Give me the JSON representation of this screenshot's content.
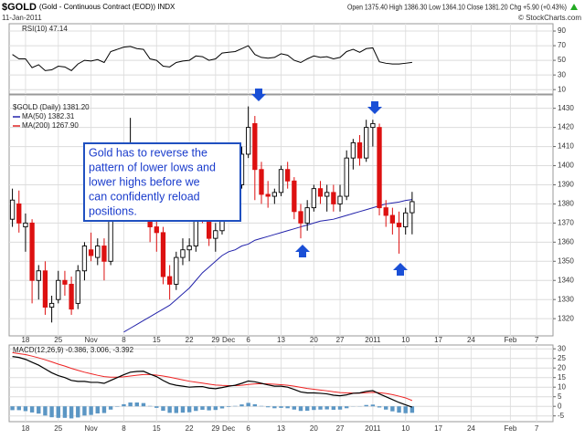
{
  "chart_data": {
    "type": "candlestick",
    "header": {
      "symbol": "$GOLD",
      "name": "(Gold - Continuous Contract (EOD)) INDX",
      "date": "11-Jan-2011",
      "quote": "Open 1375.40 High 1386.30 Low 1364.10 Close 1381.20 Chg +5.90 (+0.43%)",
      "credit": "© StockCharts.com"
    },
    "categories": [
      null,
      null,
      "18",
      null,
      null,
      null,
      null,
      "25",
      null,
      null,
      null,
      null,
      "Nov",
      null,
      null,
      null,
      null,
      "8",
      null,
      null,
      null,
      null,
      "15",
      null,
      null,
      null,
      null,
      "22",
      null,
      null,
      null,
      "29",
      null,
      "Dec",
      null,
      null,
      "6",
      null,
      null,
      null,
      null,
      "13",
      null,
      null,
      null,
      null,
      "20",
      null,
      null,
      null,
      "27",
      null,
      null,
      null,
      null,
      "2011",
      null,
      null,
      null,
      null,
      "10",
      null,
      null,
      null,
      null,
      "17",
      null,
      null,
      null,
      null,
      "24",
      null,
      null,
      null,
      null,
      null,
      "Feb",
      null,
      null,
      null,
      "7",
      null,
      null
    ],
    "grid": true,
    "annotation": [
      "Gold has to reverse the",
      "pattern of lower lows and",
      "lower highs before we",
      "can confidently reload",
      "positions."
    ],
    "rsi": {
      "legend": "RSI(10) 47.14",
      "ylim": [
        4,
        100
      ],
      "yticks": [
        90,
        70,
        50,
        30,
        10
      ],
      "color": "#000000",
      "values": [
        58,
        52,
        52,
        40,
        44,
        36,
        37,
        42,
        41,
        36,
        45,
        50,
        49,
        51,
        47,
        62,
        65,
        68,
        69,
        66,
        65,
        52,
        50,
        42,
        41,
        47,
        49,
        50,
        56,
        55,
        50,
        52,
        60,
        61,
        62,
        66,
        70,
        58,
        54,
        53,
        54,
        59,
        57,
        50,
        47,
        52,
        56,
        54,
        55,
        52,
        54,
        62,
        65,
        61,
        66,
        67,
        48,
        46,
        45,
        45,
        46,
        47.14,
        null,
        null,
        null,
        null,
        null,
        null,
        null,
        null,
        null,
        null,
        null,
        null,
        null,
        null,
        null,
        null,
        null,
        null,
        null,
        null,
        null
      ]
    },
    "price": {
      "legend": [
        "$GOLD (Daily) 1381.20",
        "MA(50) 1382.31",
        "MA(200) 1267.90"
      ],
      "legend_colors": [
        "#000000",
        "#2222aa",
        "#dd2222"
      ],
      "ylim": [
        1311,
        1437
      ],
      "yticks": [
        1430,
        1420,
        1410,
        1400,
        1390,
        1380,
        1370,
        1360,
        1350,
        1340,
        1330,
        1320
      ],
      "up_color": "#000000",
      "down_color": "#dd1111",
      "open": [
        1372,
        1380,
        1368,
        1370,
        1340,
        1345,
        1326,
        1330,
        1340,
        1338,
        1328,
        1345,
        1356,
        1352,
        1358,
        1350,
        1388,
        1395,
        1405,
        1405,
        1402,
        1400,
        1368,
        1365,
        1342,
        1338,
        1352,
        1356,
        1358,
        1375,
        1374,
        1362,
        1366,
        1386,
        1388,
        1390,
        1406,
        1422,
        1398,
        1385,
        1384,
        1386,
        1398,
        1392,
        1376,
        1370,
        1378,
        1388,
        1384,
        1386,
        1380,
        1384,
        1404,
        1412,
        1404,
        1420,
        1420,
        1378,
        1374,
        1370,
        1368,
        1375.4,
        null,
        null,
        null,
        null,
        null,
        null,
        null,
        null,
        null,
        null,
        null,
        null,
        null,
        null,
        null,
        null,
        null,
        null,
        null,
        null,
        null
      ],
      "high": [
        1388,
        1387,
        1375,
        1372,
        1348,
        1350,
        1332,
        1345,
        1345,
        1342,
        1348,
        1360,
        1365,
        1362,
        1362,
        1392,
        1400,
        1412,
        1425,
        1412,
        1410,
        1402,
        1372,
        1368,
        1348,
        1355,
        1362,
        1362,
        1378,
        1380,
        1376,
        1370,
        1388,
        1392,
        1392,
        1410,
        1431,
        1426,
        1402,
        1392,
        1388,
        1400,
        1402,
        1394,
        1380,
        1382,
        1390,
        1392,
        1390,
        1390,
        1390,
        1408,
        1414,
        1416,
        1424,
        1424,
        1422,
        1382,
        1378,
        1376,
        1378,
        1386.3,
        null,
        null,
        null,
        null,
        null,
        null,
        null,
        null,
        null,
        null,
        null,
        null,
        null,
        null,
        null,
        null,
        null,
        null,
        null,
        null,
        null
      ],
      "low": [
        1368,
        1365,
        1355,
        1328,
        1330,
        1322,
        1318,
        1328,
        1332,
        1322,
        1325,
        1340,
        1350,
        1348,
        1340,
        1348,
        1375,
        1390,
        1400,
        1392,
        1395,
        1360,
        1355,
        1338,
        1330,
        1335,
        1348,
        1350,
        1355,
        1370,
        1358,
        1355,
        1364,
        1380,
        1382,
        1388,
        1404,
        1382,
        1380,
        1378,
        1380,
        1384,
        1388,
        1372,
        1362,
        1366,
        1376,
        1380,
        1376,
        1376,
        1376,
        1382,
        1398,
        1400,
        1402,
        1410,
        1374,
        1368,
        1364,
        1354,
        1364,
        1364.1,
        null,
        null,
        null,
        null,
        null,
        null,
        null,
        null,
        null,
        null,
        null,
        null,
        null,
        null,
        null,
        null,
        null,
        null,
        null,
        null,
        null
      ],
      "close": [
        1382,
        1370,
        1370,
        1340,
        1345,
        1326,
        1328,
        1340,
        1338,
        1325,
        1345,
        1358,
        1353,
        1358,
        1350,
        1388,
        1395,
        1405,
        1410,
        1402,
        1400,
        1368,
        1365,
        1342,
        1338,
        1352,
        1356,
        1358,
        1375,
        1374,
        1362,
        1366,
        1386,
        1388,
        1390,
        1406,
        1420,
        1398,
        1385,
        1384,
        1386,
        1398,
        1392,
        1376,
        1370,
        1378,
        1388,
        1384,
        1386,
        1380,
        1384,
        1404,
        1412,
        1404,
        1420,
        1422,
        1378,
        1374,
        1370,
        1368,
        1375.3,
        1381.2,
        null,
        null,
        null,
        null,
        null,
        null,
        null,
        null,
        null,
        null,
        null,
        null,
        null,
        null,
        null,
        null,
        null,
        null,
        null,
        null,
        null
      ],
      "ma50": {
        "color": "#2222aa",
        "values": [
          null,
          null,
          null,
          null,
          null,
          null,
          null,
          null,
          null,
          null,
          null,
          null,
          null,
          null,
          null,
          null,
          null,
          1313,
          1315,
          1317,
          1319,
          1321,
          1323,
          1325,
          1327,
          1330,
          1333,
          1336,
          1340,
          1344,
          1347,
          1350,
          1353,
          1355,
          1356,
          1358,
          1359,
          1361,
          1362,
          1363,
          1364,
          1365,
          1366,
          1367,
          1368,
          1369,
          1370,
          1371,
          1371.5,
          1372,
          1373,
          1374,
          1375,
          1376,
          1377,
          1378,
          1379,
          1380,
          1380.5,
          1381,
          1381.8,
          1382.31,
          null,
          null,
          null,
          null,
          null,
          null,
          null,
          null,
          null,
          null,
          null,
          null,
          null,
          null,
          null,
          null,
          null,
          null,
          null,
          null,
          null
        ]
      }
    },
    "macd": {
      "legend": "MACD(12,26,9) -0.386, 3.006, -3.392",
      "ylim": [
        -8,
        32
      ],
      "yticks": [
        30,
        25,
        20,
        15,
        10,
        5,
        0,
        -5
      ],
      "line": {
        "color": "#000000",
        "values": [
          26,
          25.5,
          24.5,
          23,
          21.5,
          19.5,
          17.5,
          16,
          15,
          13.5,
          13,
          13,
          12.5,
          12.5,
          12,
          13.5,
          15,
          16.5,
          17.8,
          18.2,
          18.3,
          16.8,
          15.5,
          13.5,
          11.8,
          11,
          10.5,
          10,
          10.2,
          10.3,
          9.5,
          9.2,
          9.8,
          10.5,
          11,
          12,
          13.2,
          12.8,
          12,
          11.2,
          10.5,
          10.5,
          10,
          8.8,
          7.5,
          7,
          7,
          6.8,
          6.5,
          5.8,
          5.5,
          6,
          6.8,
          7,
          7.8,
          8.2,
          6.5,
          5,
          3.5,
          2,
          0.8,
          -0.386,
          null,
          null,
          null,
          null,
          null,
          null,
          null,
          null,
          null,
          null,
          null,
          null,
          null,
          null,
          null,
          null,
          null,
          null,
          null,
          null,
          null
        ]
      },
      "signal": {
        "color": "#ee2222",
        "values": [
          28,
          27.5,
          27,
          26.2,
          25.3,
          24.3,
          23.2,
          22,
          21,
          19.8,
          18.8,
          17.8,
          17,
          16.2,
          15.5,
          15.2,
          15.2,
          15.4,
          15.8,
          16.2,
          16.6,
          16.6,
          16.3,
          15.8,
          15.2,
          14.5,
          13.8,
          13.1,
          12.6,
          12.1,
          11.6,
          11.1,
          10.9,
          10.8,
          10.8,
          11,
          11.4,
          11.7,
          11.8,
          11.7,
          11.5,
          11.3,
          11,
          10.5,
          9.9,
          9.3,
          8.9,
          8.5,
          8.1,
          7.6,
          7.2,
          7,
          6.9,
          6.9,
          7.1,
          7.3,
          7.1,
          6.7,
          6.1,
          5.3,
          4.4,
          3.006,
          null,
          null,
          null,
          null,
          null,
          null,
          null,
          null,
          null,
          null,
          null,
          null,
          null,
          null,
          null,
          null,
          null,
          null,
          null,
          null,
          null
        ]
      },
      "histogram": {
        "color": "#5b96c4",
        "values": [
          -2,
          -2,
          -2.5,
          -3.2,
          -3.8,
          -4.8,
          -5.7,
          -6,
          -6,
          -6.3,
          -5.8,
          -4.8,
          -4.5,
          -3.7,
          -3.5,
          -1.7,
          -0.2,
          1.1,
          2,
          2,
          1.7,
          0.2,
          -0.8,
          -2.3,
          -3.4,
          -3.5,
          -3.3,
          -3.1,
          -2.4,
          -1.8,
          -2.1,
          -1.9,
          -1.1,
          -0.3,
          0.2,
          1,
          1.8,
          1.1,
          0.2,
          -0.5,
          -1,
          -0.8,
          -1,
          -1.7,
          -2.4,
          -2.3,
          -1.9,
          -1.7,
          -1.6,
          -1.8,
          -1.7,
          -1,
          -0.1,
          0.1,
          0.7,
          0.9,
          -0.6,
          -1.7,
          -2.6,
          -3.3,
          -3.6,
          -3.392,
          null,
          null,
          null,
          null,
          null,
          null,
          null,
          null,
          null,
          null,
          null,
          null,
          null,
          null,
          null,
          null,
          null,
          null,
          null,
          null,
          null
        ]
      }
    }
  }
}
